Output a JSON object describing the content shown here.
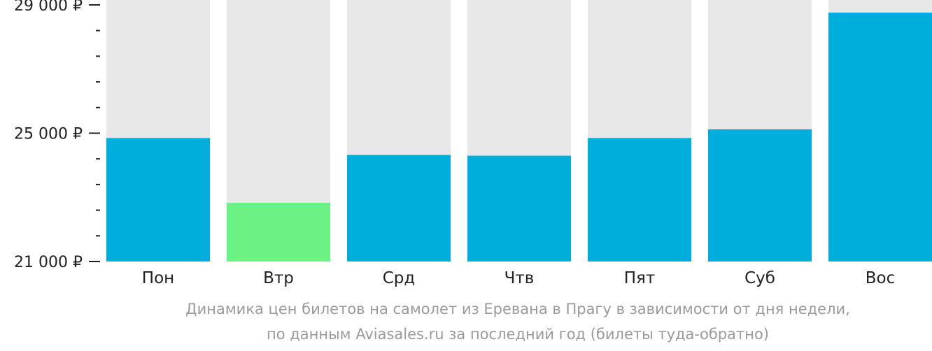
{
  "chart_data": {
    "type": "bar",
    "categories": [
      "Пон",
      "Втр",
      "Срд",
      "Чтв",
      "Пят",
      "Суб",
      "Вос"
    ],
    "values": [
      24850,
      22830,
      24320,
      24300,
      24850,
      25120,
      28760
    ],
    "highlight_index": 1,
    "ylim": [
      21000,
      29000
    ],
    "y_ticks": [
      {
        "value": 29000,
        "label": "29 000 ₽"
      },
      {
        "value": 25000,
        "label": "25 000 ₽"
      },
      {
        "value": 21000,
        "label": "21 000 ₽"
      }
    ],
    "minor_tick_step": 800,
    "colors": {
      "bar": "#00AEDB",
      "bar_highlight": "#6CF184",
      "bar_background": "#E8E8E8",
      "axis": "#222222"
    },
    "caption": [
      "Динамика цен билетов на самолет из Еревана в Прагу в зависимости от дня недели,",
      "по данным Aviasales.ru за последний год (билеты туда-обратно)"
    ]
  }
}
